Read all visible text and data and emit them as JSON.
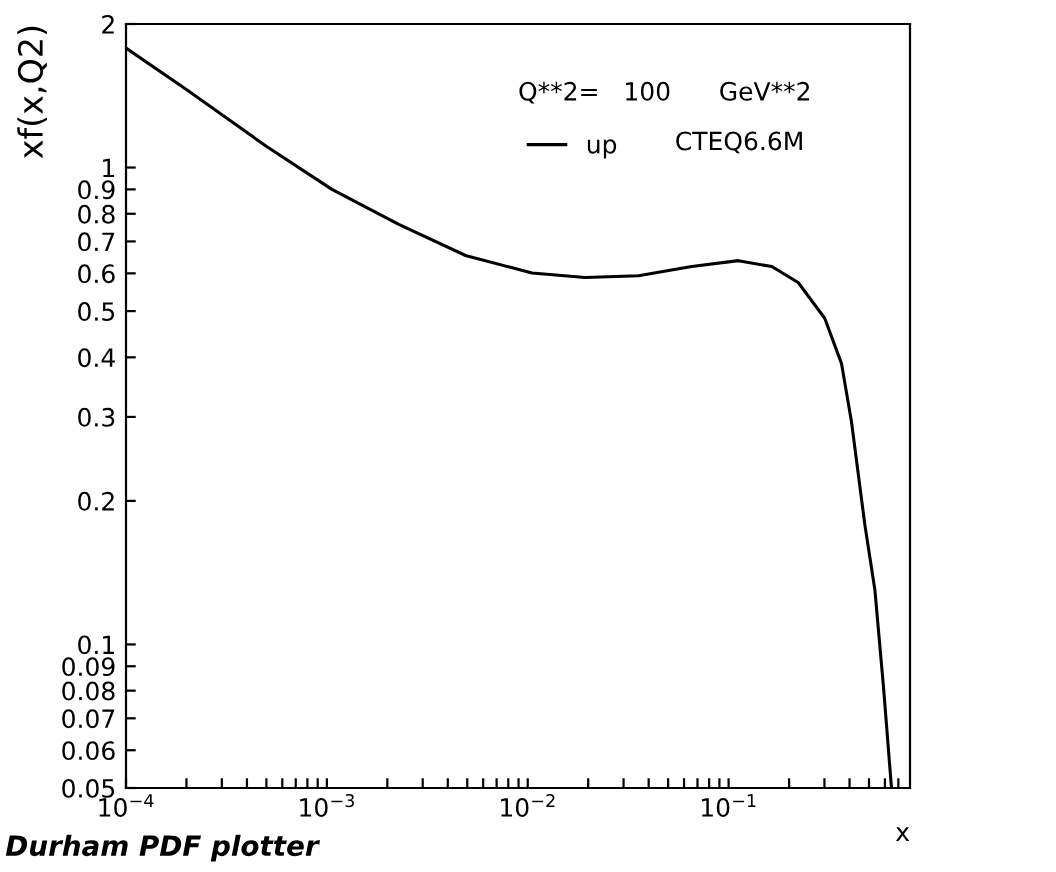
{
  "chart_data": {
    "type": "line",
    "log": "xy",
    "xlabel": "x",
    "ylabel": "xf(x,Q2)",
    "x": [
      0.0001,
      0.000199,
      0.000497,
      0.00106,
      0.00228,
      0.0049,
      0.0105,
      0.0193,
      0.0356,
      0.0655,
      0.112,
      0.164,
      0.222,
      0.301,
      0.365,
      0.409,
      0.477,
      0.535,
      0.59,
      0.647
    ],
    "series": [
      {
        "name": "up",
        "color": "#000000",
        "values": [
          1.78,
          1.46,
          1.11,
          0.9,
          0.76,
          0.654,
          0.601,
          0.588,
          0.593,
          0.62,
          0.638,
          0.62,
          0.574,
          0.483,
          0.388,
          0.293,
          0.178,
          0.13,
          0.0817,
          0.05
        ]
      }
    ],
    "xlim": [
      0.0001,
      0.8
    ],
    "ylim": [
      0.05,
      2
    ],
    "xticks": [
      {
        "value": 0.0001,
        "label": "10$^{−4}$"
      },
      {
        "value": 0.0002,
        "label": null
      },
      {
        "value": 0.0003,
        "label": null
      },
      {
        "value": 0.0004,
        "label": null
      },
      {
        "value": 0.0005,
        "label": null
      },
      {
        "value": 0.0006,
        "label": null
      },
      {
        "value": 0.0007,
        "label": null
      },
      {
        "value": 0.0008,
        "label": null
      },
      {
        "value": 0.0009,
        "label": null
      },
      {
        "value": 0.001,
        "label": "10$^{−3}$"
      },
      {
        "value": 0.002,
        "label": null
      },
      {
        "value": 0.003,
        "label": null
      },
      {
        "value": 0.004,
        "label": null
      },
      {
        "value": 0.005,
        "label": null
      },
      {
        "value": 0.006,
        "label": null
      },
      {
        "value": 0.007,
        "label": null
      },
      {
        "value": 0.008,
        "label": null
      },
      {
        "value": 0.009,
        "label": null
      },
      {
        "value": 0.01,
        "label": "10$^{−2}$"
      },
      {
        "value": 0.02,
        "label": null
      },
      {
        "value": 0.03,
        "label": null
      },
      {
        "value": 0.04,
        "label": null
      },
      {
        "value": 0.05,
        "label": null
      },
      {
        "value": 0.06,
        "label": null
      },
      {
        "value": 0.07,
        "label": null
      },
      {
        "value": 0.08,
        "label": null
      },
      {
        "value": 0.09,
        "label": null
      },
      {
        "value": 0.1,
        "label": "10$^{−1}$"
      },
      {
        "value": 0.2,
        "label": null
      },
      {
        "value": 0.3,
        "label": null
      },
      {
        "value": 0.4,
        "label": null
      },
      {
        "value": 0.5,
        "label": null
      },
      {
        "value": 0.6,
        "label": null
      },
      {
        "value": 0.7,
        "label": null
      }
    ],
    "yticks": [
      0.05,
      0.06,
      0.07,
      0.08,
      0.09,
      0.1,
      0.2,
      0.3,
      0.4,
      0.5,
      0.6,
      0.7,
      0.8,
      0.9,
      1,
      2
    ],
    "legend": "top right",
    "grid": false,
    "marker": "none",
    "line_style": "solid",
    "annotations": [
      "Q**2=   100      GeV**2",
      "CTEQ6.6M",
      "Durham PDF plotter"
    ]
  }
}
